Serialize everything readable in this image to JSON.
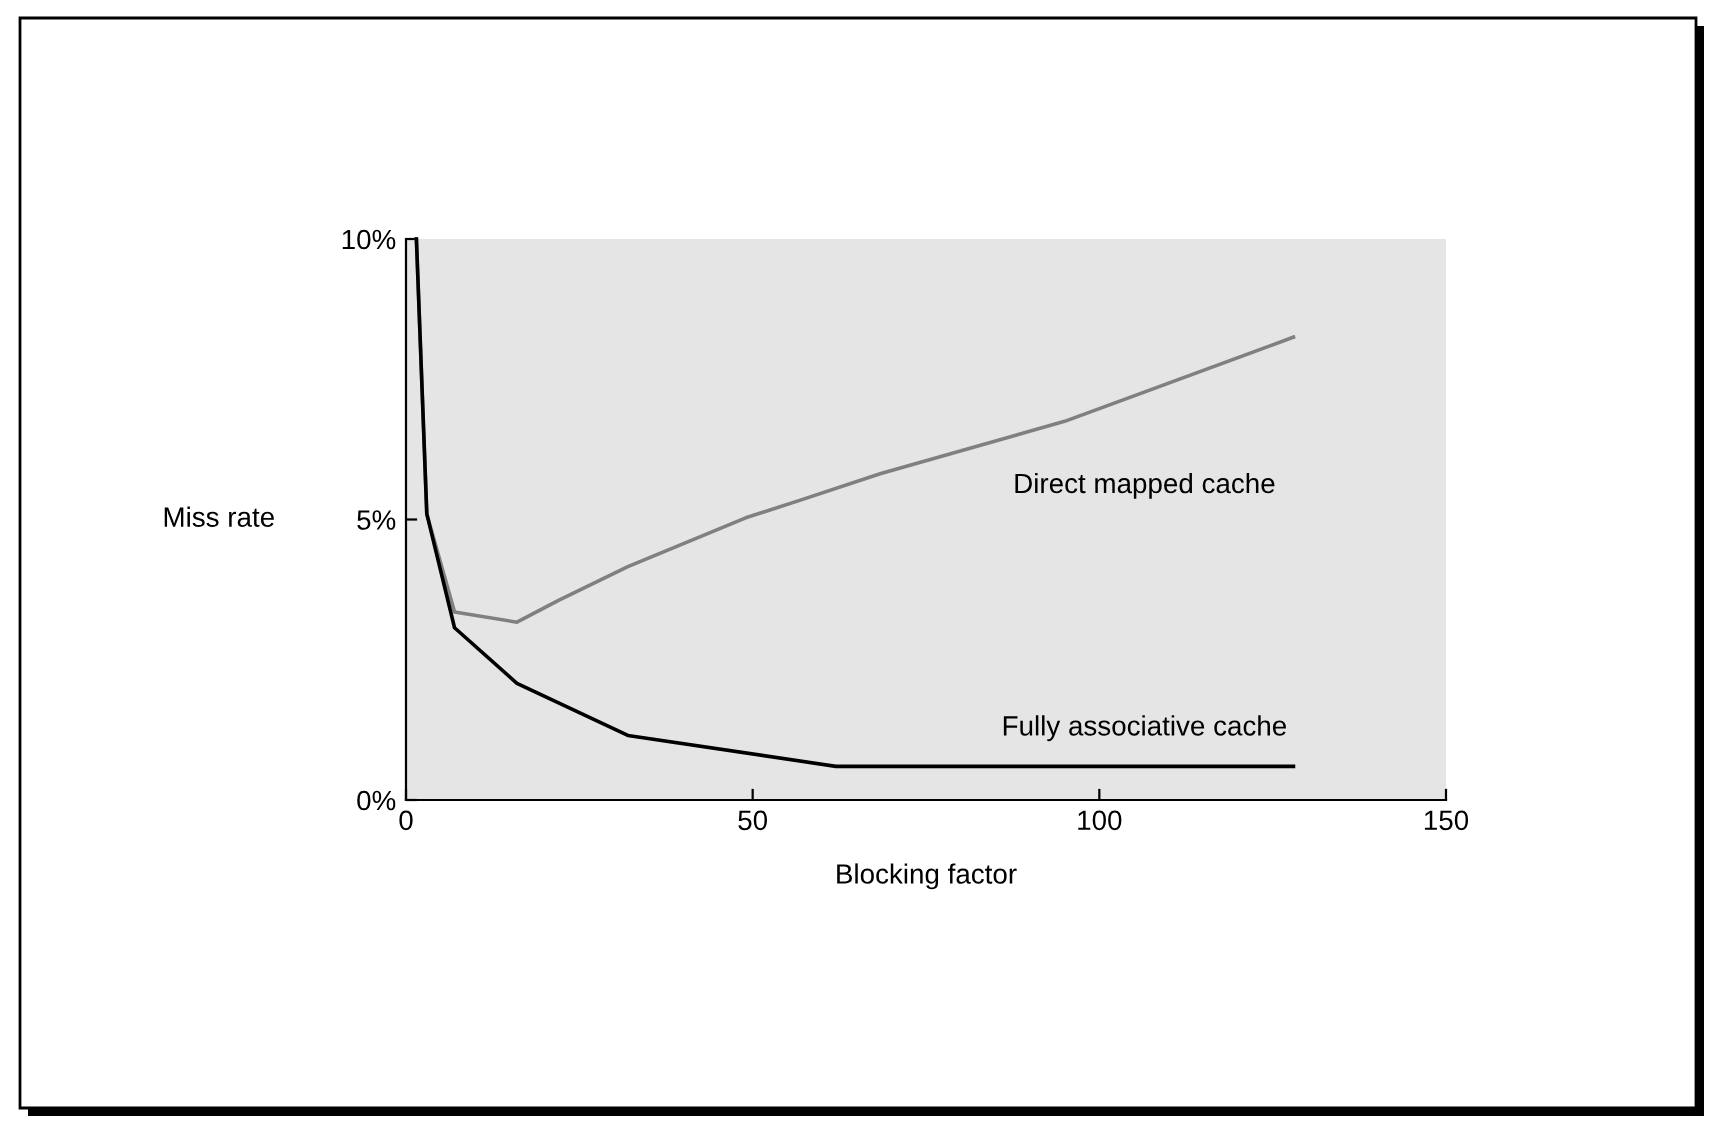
{
  "chart_data": {
    "type": "line",
    "xlabel": "Blocking factor",
    "ylabel": "Miss rate",
    "xlim": [
      0,
      150
    ],
    "xticks": [
      0,
      50,
      100,
      150
    ],
    "ylim": [
      0,
      10
    ],
    "yticks": [
      {
        "value": 0,
        "label": "0%"
      },
      {
        "value": 5,
        "label": "5%"
      },
      {
        "value": 10,
        "label": "10%"
      }
    ],
    "grid": false,
    "legend": false,
    "marker": "none",
    "line_style": "solid",
    "series": [
      {
        "name": "Direct mapped cache",
        "color": "#808080",
        "x": [
          1.5,
          3,
          7,
          16,
          22,
          32,
          49,
          57,
          68.5,
          95,
          128
        ],
        "values": [
          10,
          5.1,
          3.35,
          3.17,
          3.56,
          4.16,
          5.03,
          5.35,
          5.82,
          6.75,
          8.25
        ]
      },
      {
        "name": "Fully associative cache",
        "color": "#000000",
        "x": [
          1.5,
          3,
          7,
          16,
          32,
          62,
          128
        ],
        "values": [
          10,
          5.1,
          3.07,
          2.08,
          1.15,
          0.6,
          0.6
        ]
      }
    ]
  }
}
